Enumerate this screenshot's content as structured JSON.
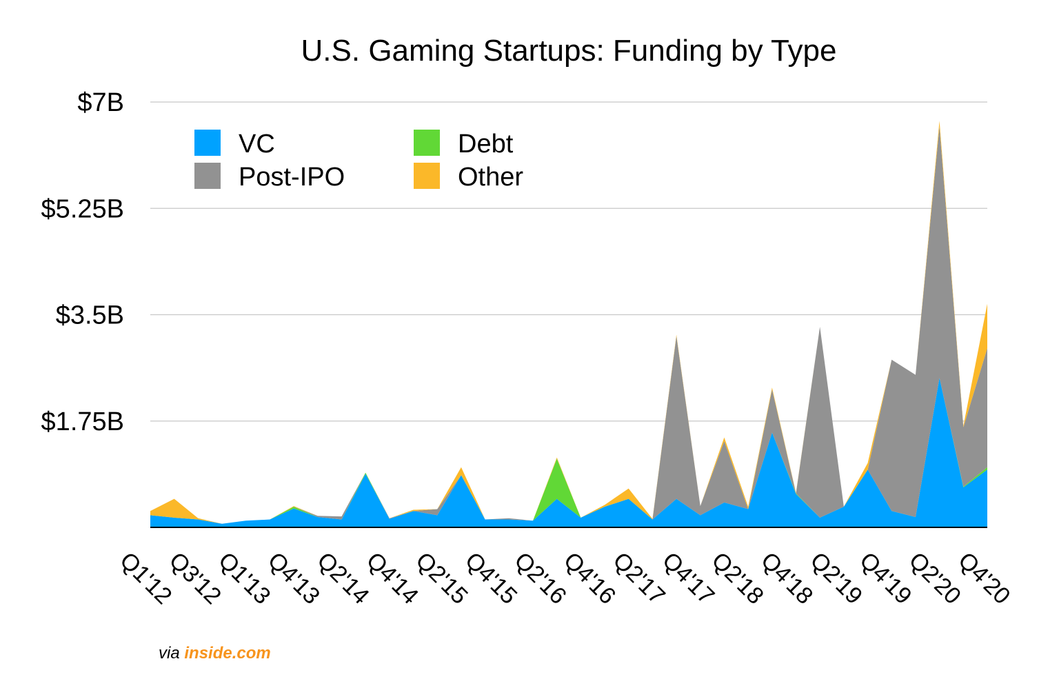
{
  "chart_data": {
    "type": "area",
    "stacked": true,
    "title": "U.S. Gaming Startups: Funding by Type",
    "yunit": "$B",
    "ylim": [
      0,
      7
    ],
    "ytick_values": [
      1.75,
      3.5,
      5.25,
      7
    ],
    "ytick_labels": [
      "$1.75B",
      "$3.5B",
      "$5.25B",
      "$7B"
    ],
    "grid": true,
    "legend_position": "top-left",
    "xtick_labels": [
      "Q1'12",
      "Q3'12",
      "Q1'13",
      "Q4'13",
      "Q2'14",
      "Q4'14",
      "Q2'15",
      "Q4'15",
      "Q2'16",
      "Q4'16",
      "Q2'17",
      "Q4'17",
      "Q2'18",
      "Q4'18",
      "Q2'19",
      "Q4'19",
      "Q2'20",
      "Q4'20"
    ],
    "series": [
      {
        "name": "VC",
        "color": "#00a2ff",
        "values": [
          0.2,
          0.16,
          0.13,
          0.06,
          0.11,
          0.13,
          0.31,
          0.17,
          0.13,
          0.88,
          0.14,
          0.27,
          0.2,
          0.86,
          0.13,
          0.13,
          0.11,
          0.47,
          0.16,
          0.34,
          0.47,
          0.13,
          0.47,
          0.2,
          0.41,
          0.3,
          1.56,
          0.55,
          0.16,
          0.34,
          0.95,
          0.27,
          0.17,
          2.46,
          0.66,
          0.95
        ]
      },
      {
        "name": "Debt",
        "color": "#61d836",
        "values": [
          0,
          0,
          0,
          0,
          0,
          0,
          0.03,
          0,
          0,
          0.02,
          0,
          0,
          0,
          0,
          0,
          0,
          0,
          0.66,
          0,
          0,
          0,
          0,
          0,
          0,
          0,
          0,
          0,
          0.01,
          0,
          0,
          0,
          0,
          0,
          0,
          0.01,
          0.04
        ]
      },
      {
        "name": "Post-IPO",
        "color": "#929292",
        "values": [
          0,
          0,
          0,
          0,
          0,
          0,
          0,
          0.02,
          0.05,
          0,
          0.01,
          0,
          0.1,
          0,
          0,
          0.02,
          0,
          0,
          0,
          0,
          0,
          0,
          2.68,
          0.15,
          1.01,
          0,
          0.71,
          0,
          3.14,
          0,
          0,
          2.49,
          2.34,
          4.14,
          0.98,
          1.96
        ]
      },
      {
        "name": "Other",
        "color": "#fbb829",
        "values": [
          0.07,
          0.31,
          0.02,
          0,
          0,
          0,
          0.01,
          0,
          0,
          0,
          0,
          0.02,
          0,
          0.13,
          0,
          0,
          0,
          0.02,
          0,
          0.03,
          0.17,
          0.01,
          0.02,
          0,
          0.06,
          0.04,
          0.03,
          0.01,
          0,
          0,
          0.11,
          0,
          0,
          0.09,
          0.02,
          0.73
        ]
      }
    ]
  },
  "credit": {
    "via": "via",
    "brand": "inside.com"
  }
}
